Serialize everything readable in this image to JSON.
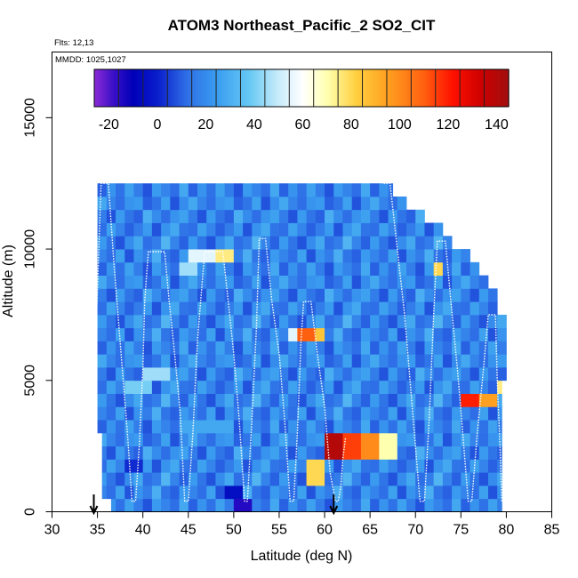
{
  "chart_data": {
    "type": "heatmap",
    "title": "ATOM3 Northeast_Pacific_2 SO2_CIT",
    "annotations": {
      "flights": "Flts: 12,13",
      "dates": "MMDD: 1025,1027"
    },
    "xlabel": "Latitude (deg N)",
    "ylabel": "Altitude (m)",
    "xlim": [
      30,
      85
    ],
    "ylim": [
      0,
      17500
    ],
    "x_ticks": [
      30,
      35,
      40,
      45,
      50,
      55,
      60,
      65,
      70,
      75,
      80,
      85
    ],
    "y_ticks": [
      0,
      5000,
      10000,
      15000
    ],
    "colorbar": {
      "range": [
        -26,
        145
      ],
      "ticks": [
        -20,
        0,
        20,
        40,
        60,
        80,
        100,
        120,
        140
      ],
      "bins": 17,
      "stops": [
        {
          "v": -26,
          "color": "#8B2BD6"
        },
        {
          "v": -18,
          "color": "#3A10C8"
        },
        {
          "v": -10,
          "color": "#0000B8"
        },
        {
          "v": 0,
          "color": "#0A1ECC"
        },
        {
          "v": 12,
          "color": "#2E6EE6"
        },
        {
          "v": 25,
          "color": "#3A9EF0"
        },
        {
          "v": 38,
          "color": "#66C8F4"
        },
        {
          "v": 50,
          "color": "#C8ECFA"
        },
        {
          "v": 60,
          "color": "#FFFFFF"
        },
        {
          "v": 70,
          "color": "#FFFFB0"
        },
        {
          "v": 82,
          "color": "#FFD040"
        },
        {
          "v": 95,
          "color": "#FFA020"
        },
        {
          "v": 110,
          "color": "#FF6010"
        },
        {
          "v": 122,
          "color": "#FF1000"
        },
        {
          "v": 134,
          "color": "#CC0000"
        },
        {
          "v": 145,
          "color": "#A01010"
        }
      ]
    },
    "grid": {
      "x_edges": [
        35,
        36,
        37,
        38,
        39,
        40,
        41,
        42,
        43,
        44,
        45,
        46,
        47,
        48,
        49,
        50,
        51,
        52,
        53,
        54,
        55,
        56,
        57,
        58,
        59,
        60,
        61,
        62,
        63,
        64,
        65,
        66,
        67,
        68,
        69,
        70,
        71,
        72,
        73,
        74,
        75,
        76,
        77,
        78,
        79,
        80
      ],
      "y_edges": [
        0,
        500,
        1000,
        1500,
        2000,
        2500,
        3000,
        3500,
        4000,
        4500,
        5000,
        5500,
        6000,
        6500,
        7000,
        7500,
        8000,
        8500,
        9000,
        9500,
        10000,
        10500,
        11000,
        11500,
        12000,
        12500
      ],
      "row_extent": [
        [
          36.5,
          79.5
        ],
        [
          35.5,
          79.5
        ],
        [
          35.5,
          79.5
        ],
        [
          35.5,
          79.5
        ],
        [
          35.5,
          79.5
        ],
        [
          35.5,
          79.5
        ],
        [
          35.0,
          79.5
        ],
        [
          35.0,
          79.5
        ],
        [
          35.0,
          79.5
        ],
        [
          35.0,
          79.5
        ],
        [
          35.0,
          80.0
        ],
        [
          35.0,
          80.0
        ],
        [
          35.0,
          80.0
        ],
        [
          35.0,
          80.0
        ],
        [
          35.0,
          80.0
        ],
        [
          35.0,
          79.0
        ],
        [
          35.0,
          79.0
        ],
        [
          35.0,
          78.0
        ],
        [
          35.0,
          77.0
        ],
        [
          35.0,
          76.0
        ],
        [
          35.0,
          74.0
        ],
        [
          35.0,
          73.0
        ],
        [
          35.0,
          71.0
        ],
        [
          35.0,
          69.0
        ],
        [
          35.0,
          67.5
        ]
      ],
      "base_value": 16,
      "value_pattern": [
        [
          6,
          18,
          9,
          22,
          12,
          4,
          20,
          14,
          8,
          24
        ],
        [
          14,
          8,
          22,
          4,
          18,
          12,
          26,
          10,
          6,
          20
        ],
        [
          20,
          10,
          4,
          16,
          24,
          8,
          12,
          28,
          14,
          6
        ],
        [
          8,
          22,
          14,
          6,
          12,
          20,
          4,
          18,
          24,
          10
        ],
        [
          12,
          4,
          20,
          10,
          6,
          26,
          16,
          8,
          18,
          22
        ],
        [
          24,
          14,
          8,
          18,
          20,
          6,
          10,
          22,
          4,
          16
        ]
      ],
      "hotspots": [
        {
          "lat": [
            60,
            66
          ],
          "alt": [
            2000,
            3000
          ],
          "value": 100
        },
        {
          "lat": [
            60,
            62
          ],
          "alt": [
            2000,
            3000
          ],
          "value": 140
        },
        {
          "lat": [
            62,
            64
          ],
          "alt": [
            2000,
            3000
          ],
          "value": 115
        },
        {
          "lat": [
            66,
            68
          ],
          "alt": [
            2000,
            3000
          ],
          "value": 70
        },
        {
          "lat": [
            58,
            60
          ],
          "alt": [
            1000,
            2000
          ],
          "value": 80
        },
        {
          "lat": [
            56,
            58
          ],
          "alt": [
            6500,
            7000
          ],
          "value": 55
        },
        {
          "lat": [
            57,
            59
          ],
          "alt": [
            6500,
            7000
          ],
          "value": 110
        },
        {
          "lat": [
            59,
            60
          ],
          "alt": [
            6500,
            7000
          ],
          "value": 85
        },
        {
          "lat": [
            75,
            77
          ],
          "alt": [
            4000,
            4500
          ],
          "value": 120
        },
        {
          "lat": [
            77,
            79
          ],
          "alt": [
            4000,
            4500
          ],
          "value": 95
        },
        {
          "lat": [
            79,
            80
          ],
          "alt": [
            4500,
            5000
          ],
          "value": 75
        },
        {
          "lat": [
            45,
            48
          ],
          "alt": [
            9500,
            10000
          ],
          "value": 55
        },
        {
          "lat": [
            48,
            50
          ],
          "alt": [
            9500,
            10000
          ],
          "value": 75
        },
        {
          "lat": [
            44,
            46
          ],
          "alt": [
            9000,
            9500
          ],
          "value": 45
        },
        {
          "lat": [
            72,
            73
          ],
          "alt": [
            9000,
            9500
          ],
          "value": 80
        },
        {
          "lat": [
            40,
            43
          ],
          "alt": [
            5000,
            5500
          ],
          "value": 45
        },
        {
          "lat": [
            38,
            41
          ],
          "alt": [
            4500,
            5000
          ],
          "value": 40
        },
        {
          "lat": [
            50,
            52
          ],
          "alt": [
            0,
            500
          ],
          "value": -15
        },
        {
          "lat": [
            49,
            51
          ],
          "alt": [
            500,
            1000
          ],
          "value": -5
        },
        {
          "lat": [
            45,
            50
          ],
          "alt": [
            3000,
            3500
          ],
          "value": 28
        },
        {
          "lat": [
            38,
            40
          ],
          "alt": [
            1500,
            2000
          ],
          "value": 2
        }
      ]
    },
    "flight_tracks": [
      [
        [
          34.8,
          6500
        ],
        [
          35.0,
          8500
        ],
        [
          35.2,
          10500
        ],
        [
          35.4,
          12500
        ],
        [
          36.2,
          12500
        ],
        [
          36.8,
          9500
        ],
        [
          37.6,
          6000
        ],
        [
          38.3,
          3000
        ],
        [
          38.8,
          400
        ],
        [
          39.2,
          400
        ],
        [
          39.6,
          2500
        ],
        [
          40.0,
          5500
        ],
        [
          40.2,
          8000
        ],
        [
          40.6,
          9900
        ],
        [
          42.4,
          9900
        ],
        [
          42.9,
          8000
        ],
        [
          43.5,
          6000
        ],
        [
          44.1,
          3800
        ],
        [
          44.6,
          400
        ],
        [
          45.0,
          400
        ],
        [
          45.5,
          3000
        ],
        [
          46.0,
          6500
        ],
        [
          46.8,
          9900
        ],
        [
          48.8,
          9900
        ],
        [
          49.4,
          8000
        ],
        [
          50.0,
          6000
        ],
        [
          50.6,
          3500
        ],
        [
          51.2,
          400
        ],
        [
          51.5,
          400
        ],
        [
          52.0,
          3500
        ],
        [
          52.5,
          7000
        ],
        [
          52.8,
          10400
        ],
        [
          53.5,
          10400
        ],
        [
          54.2,
          8000
        ],
        [
          55.0,
          6000
        ],
        [
          55.6,
          3500
        ],
        [
          56.2,
          400
        ],
        [
          56.6,
          400
        ],
        [
          57.0,
          3000
        ],
        [
          57.4,
          6500
        ],
        [
          57.7,
          8000
        ],
        [
          58.5,
          8000
        ],
        [
          59.2,
          6000
        ],
        [
          60.0,
          4000
        ],
        [
          60.6,
          1500
        ],
        [
          61.2,
          400
        ],
        [
          61.5,
          400
        ],
        [
          61.8,
          1000
        ],
        [
          62.0,
          2000
        ],
        [
          62.3,
          2800
        ]
      ],
      [
        [
          66.5,
          12500
        ],
        [
          67.2,
          12500
        ],
        [
          68.0,
          10000
        ],
        [
          68.8,
          7500
        ],
        [
          69.4,
          5000
        ],
        [
          70.0,
          2500
        ],
        [
          70.5,
          400
        ],
        [
          71.0,
          400
        ],
        [
          71.5,
          3500
        ],
        [
          72.0,
          7500
        ],
        [
          72.4,
          10300
        ],
        [
          73.3,
          10300
        ],
        [
          73.9,
          8000
        ],
        [
          74.6,
          5500
        ],
        [
          75.2,
          3000
        ],
        [
          75.8,
          400
        ],
        [
          76.2,
          400
        ],
        [
          76.8,
          3000
        ],
        [
          77.5,
          5500
        ],
        [
          78.0,
          7500
        ],
        [
          78.8,
          7500
        ],
        [
          79.0,
          5000
        ],
        [
          79.3,
          2500
        ],
        [
          79.5,
          400
        ]
      ]
    ],
    "markers": [
      {
        "lat": 34.6
      },
      {
        "lat": 61.0
      }
    ]
  }
}
